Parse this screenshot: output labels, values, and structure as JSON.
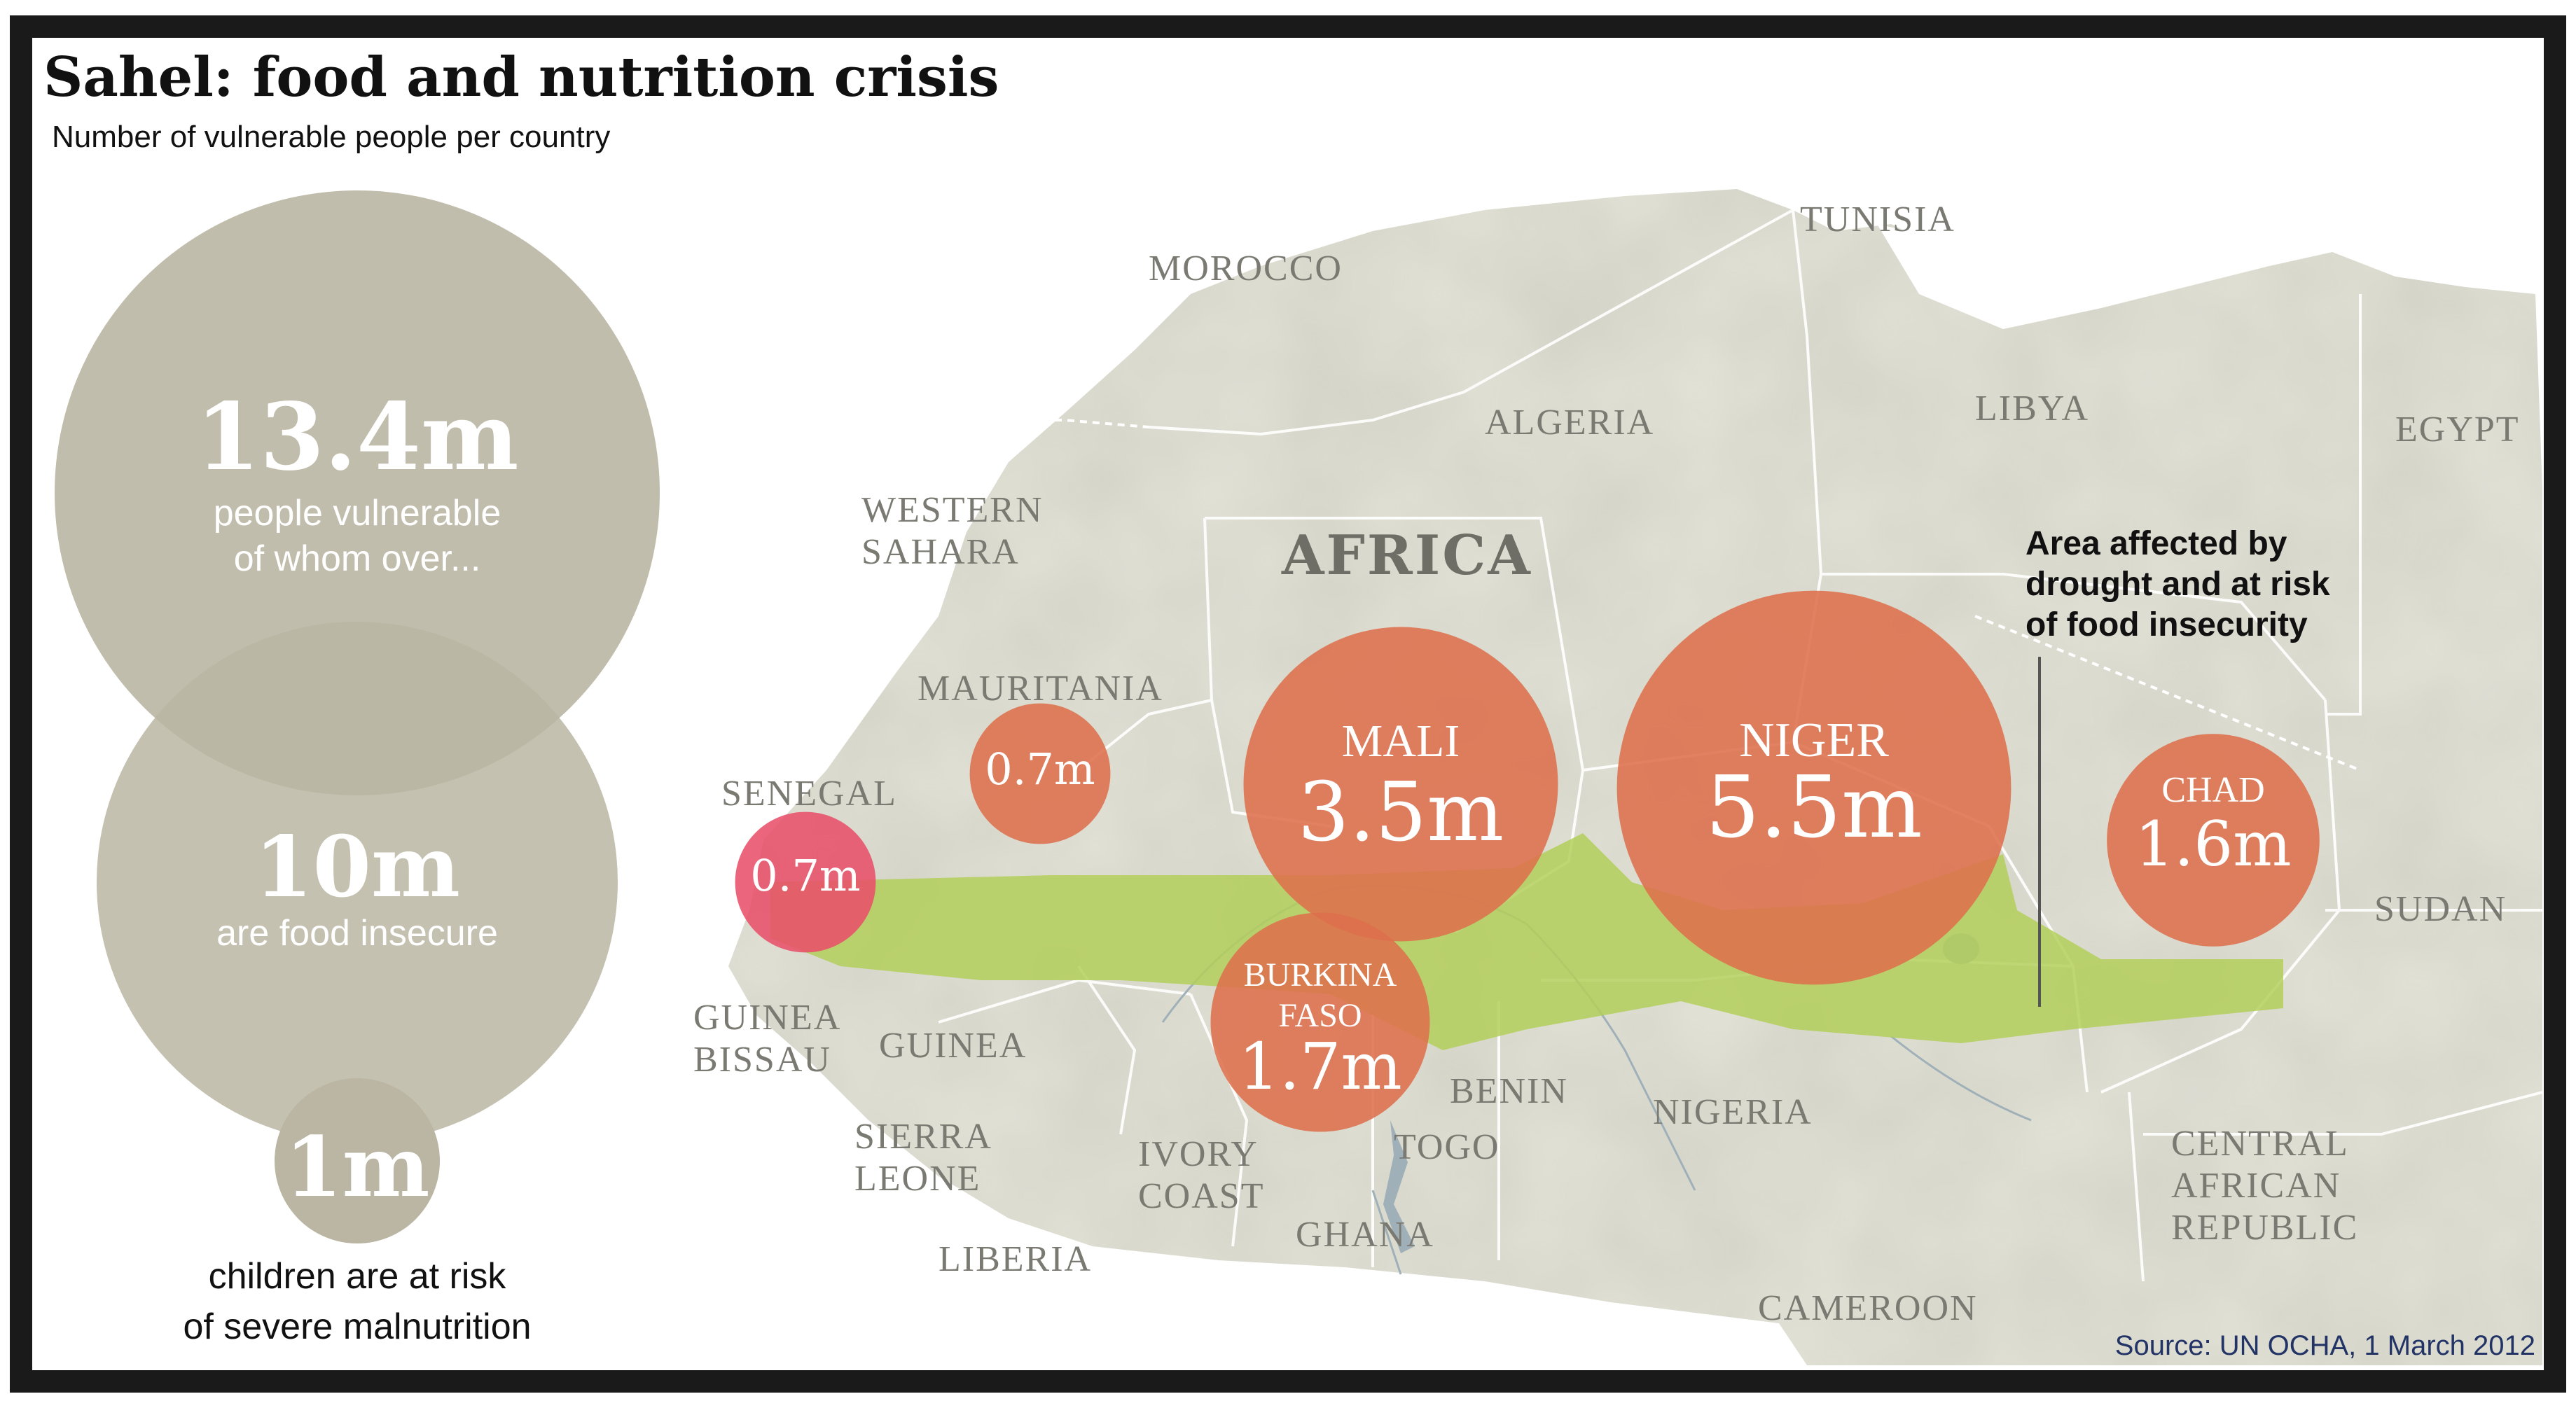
{
  "title": "Sahel: food and nutrition crisis",
  "subtitle": "Number of vulnerable people per country",
  "legend": {
    "total": {
      "value": "13.4m",
      "line1": "people vulnerable",
      "line2": "of whom over..."
    },
    "food_insecure": {
      "value": "10m",
      "line1": "are food insecure"
    },
    "children": {
      "value": "1m",
      "line1": "children are at risk",
      "line2": "of severe malnutrition"
    }
  },
  "region_label": "AFRICA",
  "countries": {
    "morocco": "MOROCCO",
    "tunisia": "TUNISIA",
    "algeria": "ALGERIA",
    "libya": "LIBYA",
    "egypt": "EGYPT",
    "western_sahara_1": "WESTERN",
    "western_sahara_2": "SAHARA",
    "mauritania": "MAURITANIA",
    "senegal": "SENEGAL",
    "guinea_bissau_1": "GUINEA",
    "guinea_bissau_2": "BISSAU",
    "guinea": "GUINEA",
    "sierra_leone_1": "SIERRA",
    "sierra_leone_2": "LEONE",
    "liberia": "LIBERIA",
    "ivory_coast_1": "IVORY",
    "ivory_coast_2": "COAST",
    "ghana": "GHANA",
    "togo": "TOGO",
    "benin": "BENIN",
    "nigeria": "NIGERIA",
    "cameroon": "CAMEROON",
    "car_1": "CENTRAL",
    "car_2": "AFRICAN",
    "car_3": "REPUBLIC",
    "sudan": "SUDAN"
  },
  "bubbles": [
    {
      "key": "mali",
      "name": "MALI",
      "value": "3.5m",
      "millions": 3.5
    },
    {
      "key": "niger",
      "name": "NIGER",
      "value": "5.5m",
      "millions": 5.5
    },
    {
      "key": "chad",
      "name": "CHAD",
      "value": "1.6m",
      "millions": 1.6
    },
    {
      "key": "burkina",
      "name1": "BURKINA",
      "name2": "FASO",
      "value": "1.7m",
      "millions": 1.7
    },
    {
      "key": "mauritania",
      "name": "",
      "value": "0.7m",
      "millions": 0.7
    },
    {
      "key": "senegal",
      "name": "",
      "value": "0.7m",
      "millions": 0.7
    }
  ],
  "annotation": {
    "line1": "Area affected by",
    "line2": "drought and at risk",
    "line3": "of food insecurity"
  },
  "source": "Source: UN OCHA, 1 March 2012",
  "colors": {
    "bubble": "#dd6f4c",
    "senegal_bubble": "#e8506a",
    "legend_bubble": "#b9b5a2",
    "sahel_band": "#b3cf5a",
    "land": "#e0dfd4",
    "sea": "#ffffff",
    "border": "#ffffff"
  }
}
